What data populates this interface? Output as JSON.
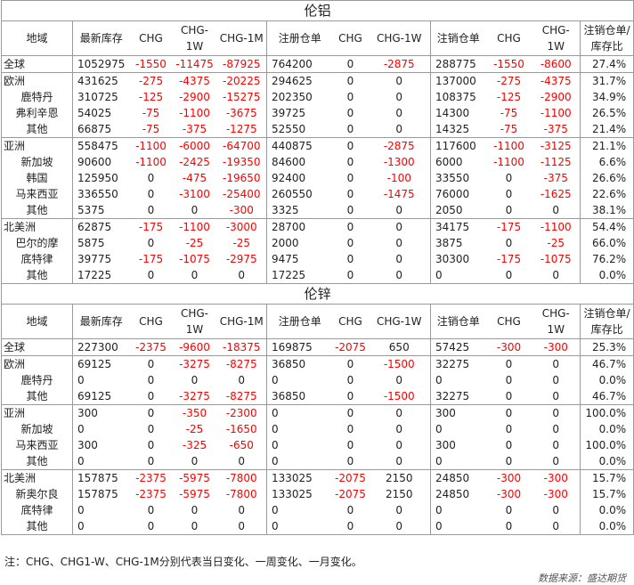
{
  "columns": [
    "地域",
    "最新库存",
    "CHG",
    "CHG-1W",
    "CHG-1M",
    "注册仓单",
    "CHG",
    "CHG-1W",
    "注销仓单",
    "CHG",
    "CHG-1W",
    "注销仓单/库存比"
  ],
  "aluminum": {
    "title": "伦铝",
    "groups": [
      [
        [
          "全球",
          "1052975",
          "-1550",
          "-11475",
          "-87925",
          "764200",
          "0",
          "-2875",
          "288775",
          "-1550",
          "-8600",
          "27.4%"
        ]
      ],
      [
        [
          "欧洲",
          "431625",
          "-275",
          "-4375",
          "-20225",
          "294625",
          "0",
          "0",
          "137000",
          "-275",
          "-4375",
          "31.7%"
        ],
        [
          "鹿特丹",
          "310725",
          "-125",
          "-2900",
          "-15275",
          "202350",
          "0",
          "0",
          "108375",
          "-125",
          "-2900",
          "34.9%"
        ],
        [
          "弗利辛恩",
          "54025",
          "-75",
          "-1100",
          "-3675",
          "39725",
          "0",
          "0",
          "14300",
          "-75",
          "-1100",
          "26.5%"
        ],
        [
          "其他",
          "66875",
          "-75",
          "-375",
          "-1275",
          "52550",
          "0",
          "0",
          "14325",
          "-75",
          "-375",
          "21.4%"
        ]
      ],
      [
        [
          "亚洲",
          "558475",
          "-1100",
          "-6000",
          "-64700",
          "440875",
          "0",
          "-2875",
          "117600",
          "-1100",
          "-3125",
          "21.1%"
        ],
        [
          "新加坡",
          "90600",
          "-1100",
          "-2425",
          "-19350",
          "84600",
          "0",
          "-1300",
          "6000",
          "-1100",
          "-1125",
          "6.6%"
        ],
        [
          "韩国",
          "125950",
          "0",
          "-475",
          "-19650",
          "92400",
          "0",
          "-100",
          "33550",
          "0",
          "-375",
          "26.6%"
        ],
        [
          "马来西亚",
          "336550",
          "0",
          "-3100",
          "-25400",
          "260550",
          "0",
          "-1475",
          "76000",
          "0",
          "-1625",
          "22.6%"
        ],
        [
          "其他",
          "5375",
          "0",
          "0",
          "-300",
          "3325",
          "0",
          "0",
          "2050",
          "0",
          "0",
          "38.1%"
        ]
      ],
      [
        [
          "北美洲",
          "62875",
          "-175",
          "-1100",
          "-3000",
          "28700",
          "0",
          "0",
          "34175",
          "-175",
          "-1100",
          "54.4%"
        ],
        [
          "巴尔的摩",
          "5875",
          "0",
          "-25",
          "-25",
          "2000",
          "0",
          "0",
          "3875",
          "0",
          "-25",
          "66.0%"
        ],
        [
          "底特律",
          "39775",
          "-175",
          "-1075",
          "-2975",
          "9475",
          "0",
          "0",
          "30300",
          "-175",
          "-1075",
          "76.2%"
        ],
        [
          "其他",
          "17225",
          "0",
          "0",
          "0",
          "17225",
          "0",
          "0",
          "0",
          "0",
          "0",
          "0.0%"
        ]
      ]
    ]
  },
  "zinc": {
    "title": "伦锌",
    "groups": [
      [
        [
          "全球",
          "227300",
          "-2375",
          "-9600",
          "-18375",
          "169875",
          "-2075",
          "650",
          "57425",
          "-300",
          "-300",
          "25.3%"
        ]
      ],
      [
        [
          "欧洲",
          "69125",
          "0",
          "-3275",
          "-8275",
          "36850",
          "0",
          "-1500",
          "32275",
          "0",
          "0",
          "46.7%"
        ],
        [
          "鹿特丹",
          "0",
          "0",
          "0",
          "0",
          "0",
          "0",
          "0",
          "0",
          "0",
          "0",
          "0.0%"
        ],
        [
          "其他",
          "69125",
          "0",
          "-3275",
          "-8275",
          "36850",
          "0",
          "-1500",
          "32275",
          "0",
          "0",
          "46.7%"
        ]
      ],
      [
        [
          "亚洲",
          "300",
          "0",
          "-350",
          "-2300",
          "0",
          "0",
          "0",
          "300",
          "0",
          "0",
          "100.0%"
        ],
        [
          "新加坡",
          "0",
          "0",
          "-25",
          "-1650",
          "0",
          "0",
          "0",
          "0",
          "0",
          "0",
          "0.0%"
        ],
        [
          "马来西亚",
          "300",
          "0",
          "-325",
          "-650",
          "0",
          "0",
          "0",
          "300",
          "0",
          "0",
          "100.0%"
        ],
        [
          "其他",
          "0",
          "0",
          "0",
          "0",
          "0",
          "0",
          "0",
          "0",
          "0",
          "0",
          "0.0%"
        ]
      ],
      [
        [
          "北美洲",
          "157875",
          "-2375",
          "-5975",
          "-7800",
          "133025",
          "-2075",
          "2150",
          "24850",
          "-300",
          "-300",
          "15.7%"
        ],
        [
          "新奥尔良",
          "157875",
          "-2375",
          "-5975",
          "-7800",
          "133025",
          "-2075",
          "2150",
          "24850",
          "-300",
          "-300",
          "15.7%"
        ],
        [
          "底特律",
          "0",
          "0",
          "0",
          "0",
          "0",
          "0",
          "0",
          "0",
          "0",
          "0",
          "0.0%"
        ],
        [
          "其他",
          "0",
          "0",
          "0",
          "0",
          "0",
          "0",
          "0",
          "0",
          "0",
          "0",
          "0.0%"
        ]
      ]
    ]
  },
  "footnote": "注：CHG、CHG1-W、CHG-1M分别代表当日变化、一周变化、一月变化。",
  "source": "数据来源：盛达期货",
  "colors": {
    "negative": "#ff0000",
    "border": "#9a9a9a",
    "text": "#222222"
  }
}
